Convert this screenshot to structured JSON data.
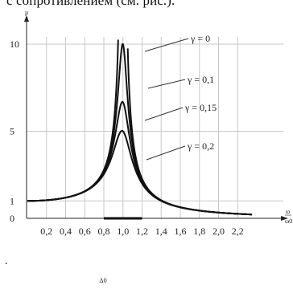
{
  "header": {
    "text": "с сопротивлением (см. рис.)."
  },
  "footer": {
    "text": "."
  },
  "chart_data": {
    "type": "line",
    "ylabel": "μ",
    "xlabel": "ω/ω0",
    "xlim": [
      0,
      2.5
    ],
    "ylim": [
      0,
      10.7
    ],
    "x_ticks": [
      0.2,
      0.4,
      0.6,
      0.8,
      1.0,
      1.2,
      1.4,
      1.6,
      1.8,
      2.0,
      2.2
    ],
    "x_tick_labels": [
      "0,2",
      "0,4",
      "0,6",
      "0,8",
      "1,0",
      "1,2",
      "1,4",
      "1,6",
      "1,8",
      "2,0",
      "2,2"
    ],
    "y_ticks": [
      0,
      1,
      5,
      10
    ],
    "y_tick_labels": [
      "0",
      "1",
      "5",
      "10"
    ],
    "grid": true,
    "series": [
      {
        "name": "γ = 0",
        "gamma": 0
      },
      {
        "name": "γ = 0,1",
        "gamma": 0.1
      },
      {
        "name": "γ = 0,15",
        "gamma": 0.15
      },
      {
        "name": "γ = 0,2",
        "gamma": 0.2
      }
    ],
    "annotations": {
      "bandwidth_label": "Δ0",
      "bandwidth_range": [
        0.8,
        1.2
      ]
    }
  }
}
